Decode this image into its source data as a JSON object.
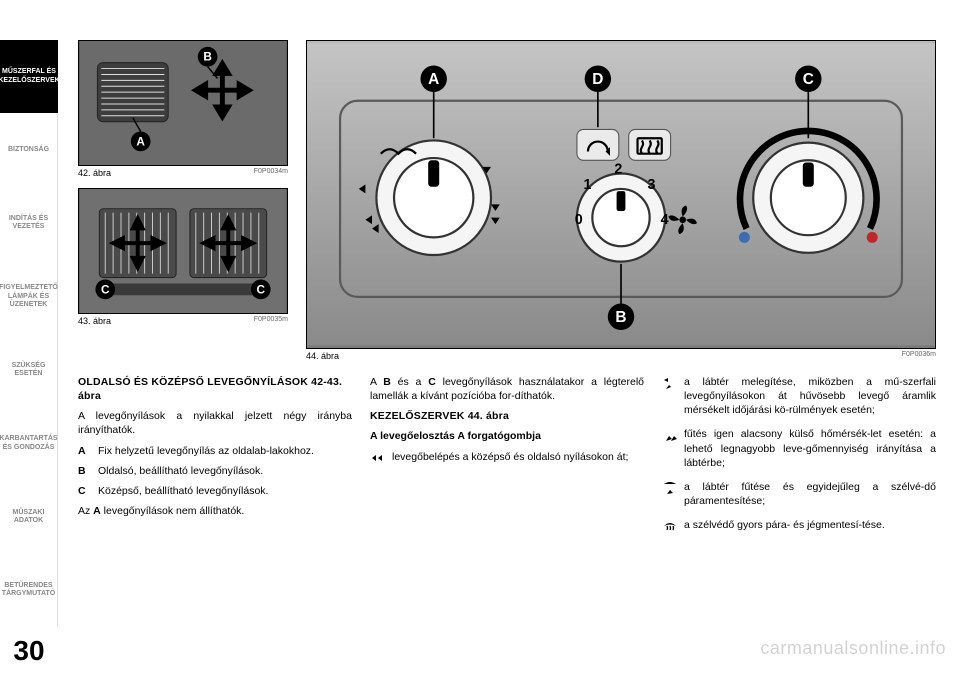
{
  "page_number": "30",
  "tabs": [
    {
      "label": "MŰSZERFAL ÉS\nKEZELŐSZERVEK",
      "active": true
    },
    {
      "label": "BIZTONSÁG",
      "active": false
    },
    {
      "label": "INDÍTÁS ÉS\nVEZETÉS",
      "active": false
    },
    {
      "label": "FIGYELMEZTETŐ\nLÁMPÁK ÉS\nÜZENETEK",
      "active": false
    },
    {
      "label": "SZÜKSÉG\nESETÉN",
      "active": false
    },
    {
      "label": "KARBANTARTÁS\nÉS GONDOZÁS",
      "active": false
    },
    {
      "label": "MŰSZAKI\nADATOK",
      "active": false
    },
    {
      "label": "BETŰRENDES\nTÁRGYMUTATÓ",
      "active": false
    }
  ],
  "fig42": {
    "caption": "42. ábra",
    "code": "F0P0034m",
    "labels": [
      "A",
      "B"
    ]
  },
  "fig43": {
    "caption": "43. ábra",
    "code": "F0P0035m",
    "labels": [
      "C",
      "C"
    ]
  },
  "fig44": {
    "caption": "44. ábra",
    "code": "F0P0036m",
    "labels": [
      "A",
      "B",
      "C",
      "D"
    ],
    "fan_marks": [
      "0",
      "1",
      "2",
      "3",
      "4"
    ],
    "bg_gradient": [
      "#bababa",
      "#7a7a7a"
    ]
  },
  "col1": {
    "heading": "OLDALSÓ ÉS KÖZÉPSŐ LEVEGŐNYÍLÁSOK 42-43. ábra",
    "intro": "A levegőnyílások a nyilakkal jelzett négy irányba irányíthatók.",
    "items": [
      {
        "key": "A",
        "text": "Fix helyzetű levegőnyílás az oldalab-lakokhoz."
      },
      {
        "key": "B",
        "text": "Oldalsó, beállítható levegőnyílások."
      },
      {
        "key": "C",
        "text": "Középső, beállítható levegőnyílások."
      }
    ],
    "outro": "Az A levegőnyílások nem állíthatók."
  },
  "col2": {
    "p1": "A B és a C levegőnyílások használatakor a légterelő lamellák a kívánt pozícióba for-díthatók.",
    "heading": "KEZELŐSZERVEK 44. ábra",
    "subheading": "A levegőelosztás A forgatógombja",
    "item": "levegőbelépés a középső és oldalsó nyílásokon át;"
  },
  "col3": {
    "items": [
      "a lábtér melegítése, miközben a mű-szerfali levegőnyílásokon át hűvösebb levegő áramlik mérsékelt időjárási kö-rülmények esetén;",
      "fűtés igen alacsony külső hőmérsék-let esetén: a lehető legnagyobb leve-gőmennyiség irányítása a lábtérbe;",
      "a lábtér fűtése és egyidejűleg a szélvé-dő páramentesítése;",
      "a szélvédő gyors pára- és jégmentesí-tése."
    ]
  },
  "watermark": "carmanualsonline.info",
  "colors": {
    "black": "#000000",
    "grey_text": "#888888",
    "panel_grey": "#9a9a9a",
    "dark_grey": "#555555",
    "label_bg": "#000000",
    "label_fg": "#ffffff"
  }
}
